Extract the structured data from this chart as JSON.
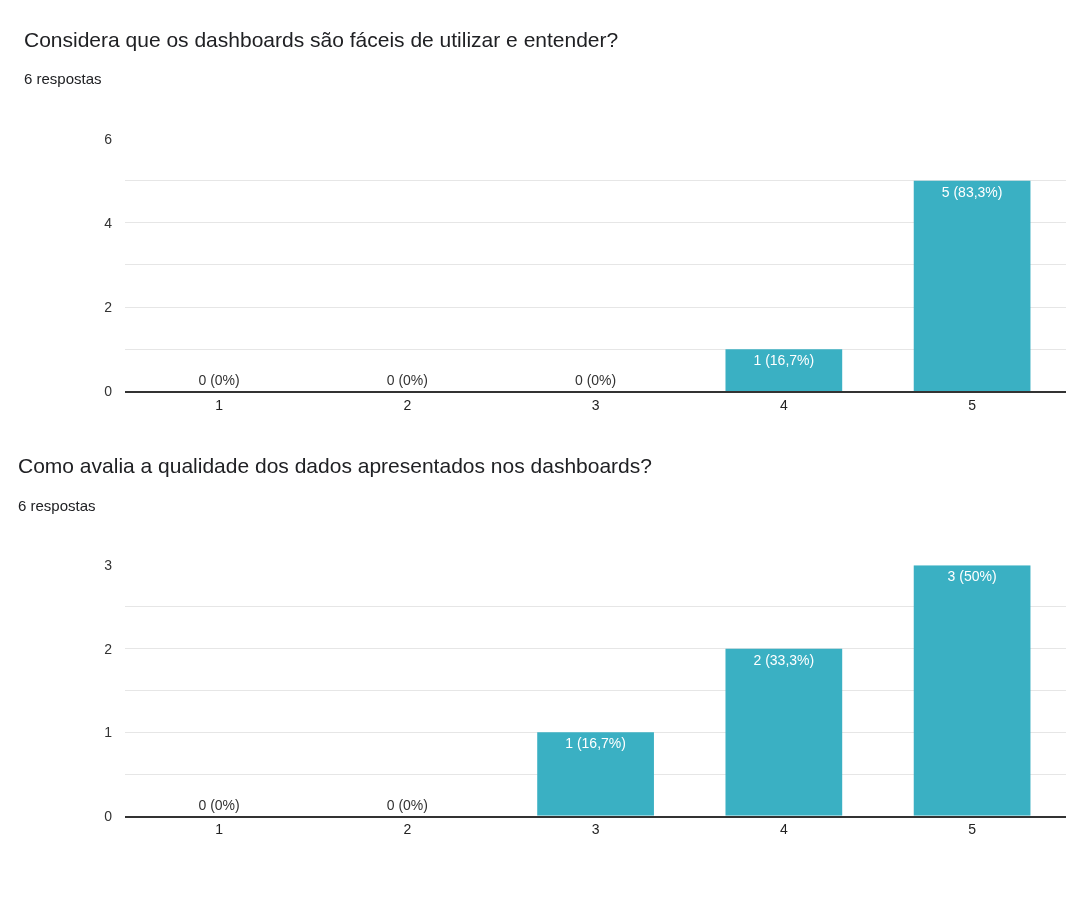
{
  "chart_data": [
    {
      "type": "bar",
      "title": "Considera que os dashboards são fáceis de utilizar e entender?",
      "subtitle": "6 respostas",
      "categories": [
        "1",
        "2",
        "3",
        "4",
        "5"
      ],
      "values": [
        0,
        0,
        0,
        1,
        5
      ],
      "color": "#3ab0c3",
      "value_labels": [
        "0 (0%)",
        "0 (0%)",
        "0 (0%)",
        "1 (16,7%)",
        "5 (83,3%)"
      ],
      "ylim": [
        0,
        6
      ],
      "yticks": [
        0,
        {
          "value": 1,
          "label": null
        },
        2,
        {
          "value": 3,
          "label": null
        },
        4,
        {
          "value": 5,
          "label": null
        },
        6
      ],
      "grid": "y"
    },
    {
      "type": "bar",
      "title": "Como avalia a qualidade dos dados apresentados nos dashboards?",
      "subtitle": "6 respostas",
      "categories": [
        "1",
        "2",
        "3",
        "4",
        "5"
      ],
      "values": [
        0,
        0,
        1,
        2,
        3
      ],
      "color": "#3ab0c3",
      "value_labels": [
        "0 (0%)",
        "0 (0%)",
        "1 (16,7%)",
        "2 (33,3%)",
        "3 (50%)"
      ],
      "ylim": [
        0,
        3
      ],
      "yticks": [
        0,
        {
          "value": 0.5,
          "label": null
        },
        1,
        {
          "value": 1.5,
          "label": null
        },
        2,
        {
          "value": 2.5,
          "label": null
        },
        3
      ],
      "grid": "y"
    }
  ]
}
